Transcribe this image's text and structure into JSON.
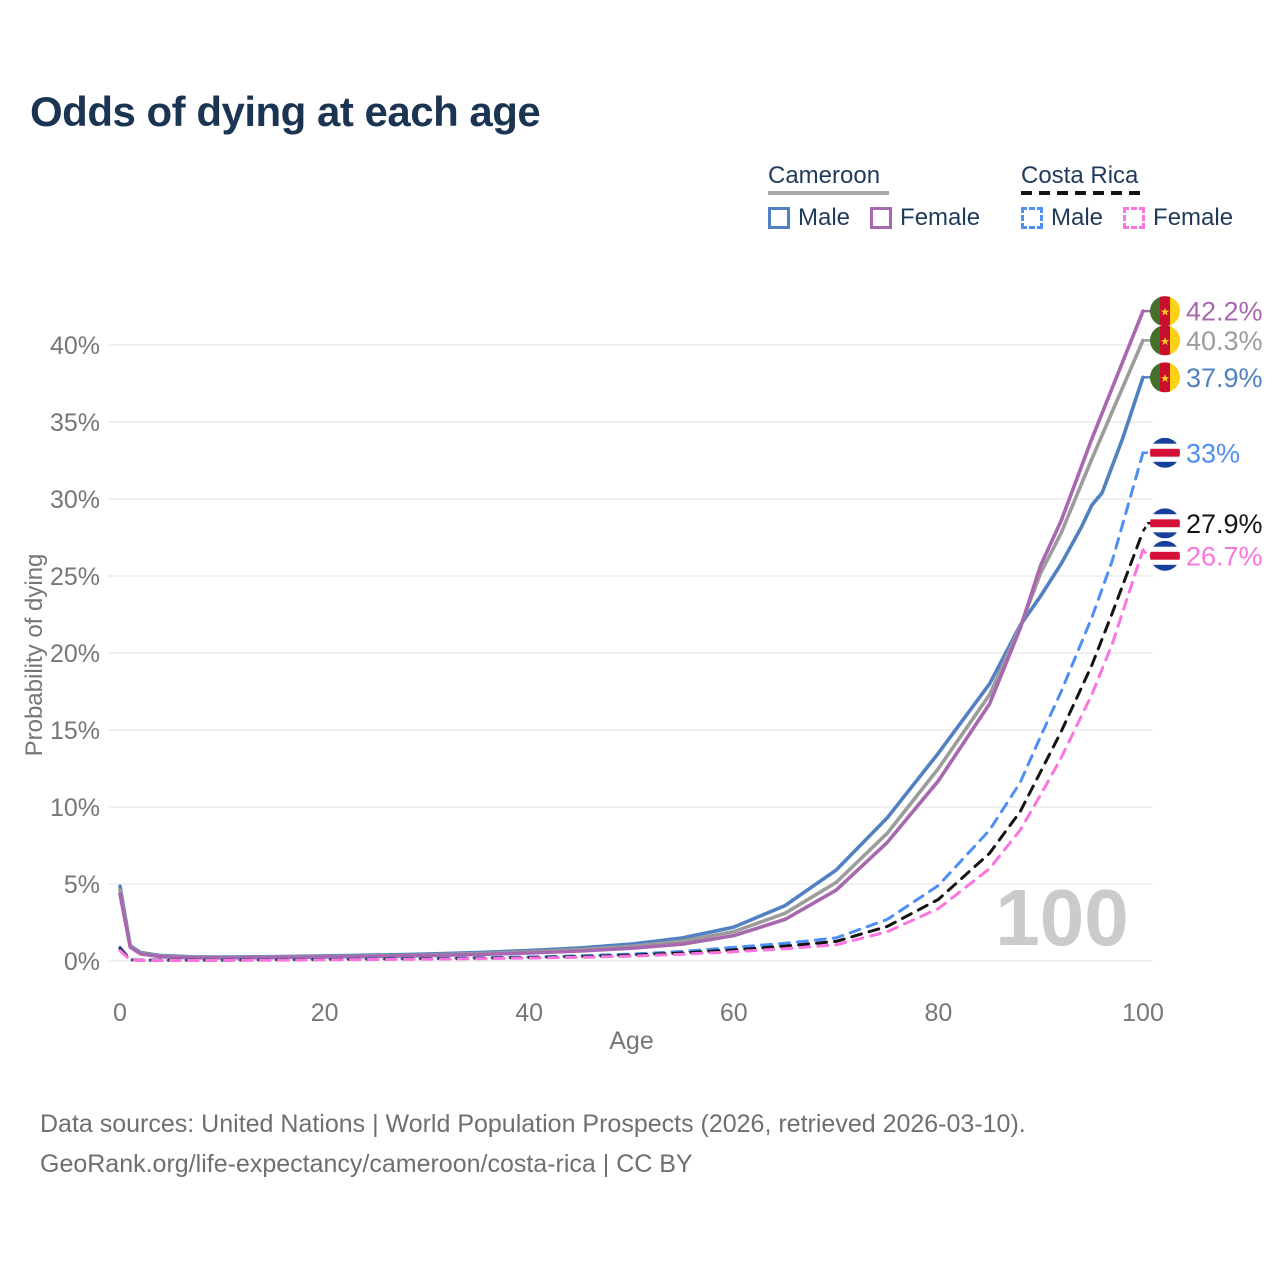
{
  "title": "Odds of dying at each age",
  "legend": {
    "groups": [
      {
        "name": "Cameroon",
        "line_style": "solid",
        "line_color": "#a8a8a8",
        "items": [
          {
            "label": "Male",
            "series": "cm_male"
          },
          {
            "label": "Female",
            "series": "cm_female"
          }
        ]
      },
      {
        "name": "Costa Rica",
        "line_style": "dashed",
        "line_color": "#141414",
        "items": [
          {
            "label": "Male",
            "series": "cr_male"
          },
          {
            "label": "Female",
            "series": "cr_female"
          }
        ]
      }
    ]
  },
  "chart_data": {
    "type": "line",
    "title": "Odds of dying at each age",
    "xlabel": "Age",
    "ylabel": "Probability of dying",
    "xlim": [
      0,
      100
    ],
    "ylim": [
      0,
      43
    ],
    "x_ticks": [
      0,
      20,
      40,
      60,
      80,
      100
    ],
    "y_ticks": [
      {
        "v": 0,
        "label": "0%"
      },
      {
        "v": 5,
        "label": "5%"
      },
      {
        "v": 10,
        "label": "10%"
      },
      {
        "v": 15,
        "label": "15%"
      },
      {
        "v": 20,
        "label": "20%"
      },
      {
        "v": 25,
        "label": "25%"
      },
      {
        "v": 30,
        "label": "30%"
      },
      {
        "v": 35,
        "label": "35%"
      },
      {
        "v": 40,
        "label": "40%"
      }
    ],
    "grid": true,
    "legend_position": "top-right",
    "watermark": "100",
    "units": "percent probability of dying at each age",
    "series": [
      {
        "id": "cm_male",
        "name": "Cameroon Male",
        "color": "#5181c2",
        "dashed": false,
        "flag": "cameroon",
        "end_label": "37.9%",
        "end_value": 37.9,
        "points": [
          [
            0,
            4.85
          ],
          [
            1,
            1.0
          ],
          [
            2,
            0.55
          ],
          [
            4,
            0.35
          ],
          [
            7,
            0.27
          ],
          [
            10,
            0.25
          ],
          [
            15,
            0.28
          ],
          [
            20,
            0.33
          ],
          [
            25,
            0.38
          ],
          [
            30,
            0.45
          ],
          [
            35,
            0.55
          ],
          [
            40,
            0.68
          ],
          [
            45,
            0.85
          ],
          [
            50,
            1.1
          ],
          [
            55,
            1.5
          ],
          [
            60,
            2.2
          ],
          [
            65,
            3.6
          ],
          [
            70,
            5.9
          ],
          [
            75,
            9.3
          ],
          [
            80,
            13.5
          ],
          [
            85,
            18.0
          ],
          [
            88,
            21.8
          ],
          [
            90,
            23.7
          ],
          [
            92,
            25.8
          ],
          [
            94,
            28.2
          ],
          [
            95,
            29.6
          ],
          [
            96,
            30.4
          ],
          [
            98,
            33.9
          ],
          [
            100,
            37.9
          ]
        ]
      },
      {
        "id": "cm_both",
        "name": "Cameroon Both sexes",
        "color": "#9c9c9c",
        "dashed": false,
        "flag": "cameroon",
        "end_label": "40.3%",
        "end_value": 40.3,
        "points": [
          [
            0,
            4.6
          ],
          [
            1,
            0.95
          ],
          [
            2,
            0.5
          ],
          [
            4,
            0.31
          ],
          [
            7,
            0.24
          ],
          [
            10,
            0.22
          ],
          [
            15,
            0.25
          ],
          [
            20,
            0.29
          ],
          [
            25,
            0.33
          ],
          [
            30,
            0.39
          ],
          [
            35,
            0.48
          ],
          [
            40,
            0.59
          ],
          [
            45,
            0.74
          ],
          [
            50,
            0.95
          ],
          [
            55,
            1.3
          ],
          [
            60,
            1.9
          ],
          [
            65,
            3.1
          ],
          [
            70,
            5.1
          ],
          [
            75,
            8.3
          ],
          [
            80,
            12.5
          ],
          [
            85,
            17.3
          ],
          [
            88,
            21.7
          ],
          [
            90,
            25.2
          ],
          [
            92,
            27.8
          ],
          [
            95,
            32.6
          ],
          [
            100,
            40.3
          ]
        ]
      },
      {
        "id": "cm_female",
        "name": "Cameroon Female",
        "color": "#a868b0",
        "dashed": false,
        "flag": "cameroon",
        "end_label": "42.2%",
        "end_value": 42.2,
        "points": [
          [
            0,
            4.35
          ],
          [
            1,
            0.9
          ],
          [
            2,
            0.46
          ],
          [
            4,
            0.28
          ],
          [
            7,
            0.21
          ],
          [
            10,
            0.2
          ],
          [
            15,
            0.22
          ],
          [
            20,
            0.26
          ],
          [
            25,
            0.3
          ],
          [
            30,
            0.35
          ],
          [
            35,
            0.42
          ],
          [
            40,
            0.52
          ],
          [
            45,
            0.65
          ],
          [
            50,
            0.83
          ],
          [
            55,
            1.1
          ],
          [
            60,
            1.65
          ],
          [
            65,
            2.7
          ],
          [
            70,
            4.6
          ],
          [
            75,
            7.7
          ],
          [
            80,
            11.7
          ],
          [
            85,
            16.7
          ],
          [
            88,
            21.6
          ],
          [
            90,
            25.7
          ],
          [
            92,
            28.6
          ],
          [
            95,
            33.9
          ],
          [
            100,
            42.2
          ]
        ]
      },
      {
        "id": "cr_male",
        "name": "Costa Rica Male",
        "color": "#4d8ef7",
        "dashed": true,
        "flag": "costa-rica",
        "end_label": "33%",
        "end_value": 33,
        "points": [
          [
            0,
            0.9
          ],
          [
            1,
            0.08
          ],
          [
            2,
            0.06
          ],
          [
            5,
            0.05
          ],
          [
            10,
            0.06
          ],
          [
            15,
            0.09
          ],
          [
            20,
            0.12
          ],
          [
            25,
            0.14
          ],
          [
            30,
            0.17
          ],
          [
            35,
            0.21
          ],
          [
            40,
            0.26
          ],
          [
            45,
            0.34
          ],
          [
            50,
            0.45
          ],
          [
            55,
            0.62
          ],
          [
            60,
            0.88
          ],
          [
            65,
            1.15
          ],
          [
            70,
            1.5
          ],
          [
            75,
            2.7
          ],
          [
            80,
            4.9
          ],
          [
            85,
            8.5
          ],
          [
            88,
            11.6
          ],
          [
            90,
            14.6
          ],
          [
            92,
            17.5
          ],
          [
            95,
            22.3
          ],
          [
            97,
            26.0
          ],
          [
            100,
            33.0
          ]
        ]
      },
      {
        "id": "cr_both",
        "name": "Costa Rica Both sexes",
        "color": "#141414",
        "dashed": true,
        "flag": "costa-rica",
        "end_label": "27.9%",
        "end_value": 27.9,
        "points": [
          [
            0,
            0.8
          ],
          [
            1,
            0.07
          ],
          [
            2,
            0.05
          ],
          [
            5,
            0.045
          ],
          [
            10,
            0.05
          ],
          [
            15,
            0.07
          ],
          [
            20,
            0.1
          ],
          [
            25,
            0.12
          ],
          [
            30,
            0.14
          ],
          [
            35,
            0.17
          ],
          [
            40,
            0.22
          ],
          [
            45,
            0.28
          ],
          [
            50,
            0.38
          ],
          [
            55,
            0.52
          ],
          [
            60,
            0.72
          ],
          [
            65,
            0.97
          ],
          [
            70,
            1.27
          ],
          [
            75,
            2.25
          ],
          [
            80,
            4.0
          ],
          [
            85,
            7.0
          ],
          [
            88,
            9.7
          ],
          [
            90,
            12.3
          ],
          [
            92,
            14.9
          ],
          [
            95,
            19.2
          ],
          [
            97,
            22.6
          ],
          [
            100,
            27.9
          ]
        ]
      },
      {
        "id": "cr_female",
        "name": "Costa Rica Female",
        "color": "#fb74df",
        "dashed": true,
        "flag": "costa-rica",
        "end_label": "26.7%",
        "end_value": 26.7,
        "points": [
          [
            0,
            0.68
          ],
          [
            1,
            0.06
          ],
          [
            2,
            0.04
          ],
          [
            5,
            0.035
          ],
          [
            10,
            0.04
          ],
          [
            15,
            0.055
          ],
          [
            20,
            0.08
          ],
          [
            25,
            0.1
          ],
          [
            30,
            0.12
          ],
          [
            35,
            0.15
          ],
          [
            40,
            0.19
          ],
          [
            45,
            0.24
          ],
          [
            50,
            0.32
          ],
          [
            55,
            0.44
          ],
          [
            60,
            0.6
          ],
          [
            65,
            0.8
          ],
          [
            70,
            1.05
          ],
          [
            75,
            1.9
          ],
          [
            80,
            3.4
          ],
          [
            85,
            6.0
          ],
          [
            88,
            8.5
          ],
          [
            90,
            10.8
          ],
          [
            92,
            13.2
          ],
          [
            95,
            17.3
          ],
          [
            97,
            20.6
          ],
          [
            100,
            26.7
          ]
        ]
      }
    ]
  },
  "flag_colors": {
    "cameroon": {
      "green": "#44702c",
      "red": "#c8102e",
      "yellow": "#fcd116"
    },
    "costa_rica": {
      "blue": "#16409e",
      "red": "#d5113a",
      "white": "#ffffff"
    }
  },
  "footer": {
    "line1": "Data sources: United Nations | World Population Prospects (2026, retrieved 2026-03-10).",
    "line2": "GeoRank.org/life-expectancy/cameroon/costa-rica | CC BY"
  }
}
